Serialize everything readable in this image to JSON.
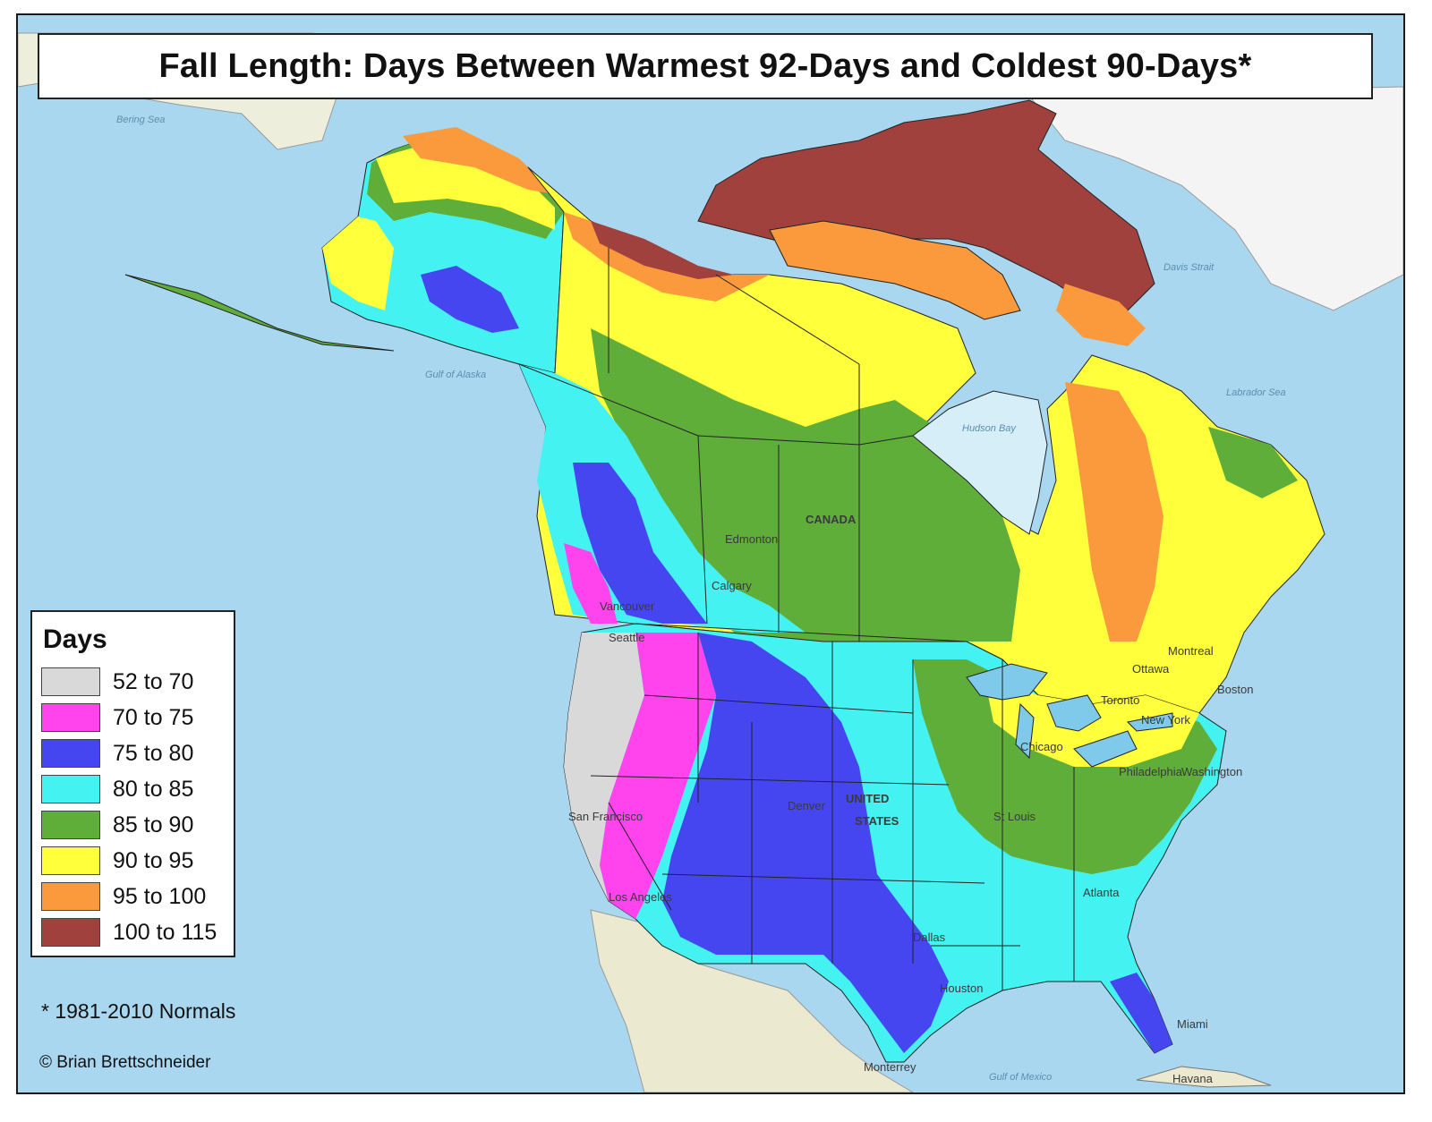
{
  "title": "Fall Length: Days Between Warmest 92-Days and Coldest 90-Days*",
  "legend": {
    "title": "Days",
    "items": [
      {
        "label": "52 to 70",
        "color": "#d9d9d9"
      },
      {
        "label": "70 to 75",
        "color": "#ff44ee"
      },
      {
        "label": "75 to 80",
        "color": "#4646f0"
      },
      {
        "label": "80 to 85",
        "color": "#45f2f2"
      },
      {
        "label": "85 to 90",
        "color": "#5fae3a"
      },
      {
        "label": "90 to 95",
        "color": "#ffff3c"
      },
      {
        "label": "95 to 100",
        "color": "#fb9a3c"
      },
      {
        "label": "100 to 115",
        "color": "#a0413e"
      }
    ]
  },
  "footnote": "* 1981-2010 Normals",
  "credit": "© Brian Brettschneider",
  "map_labels": {
    "country_canada": "CANADA",
    "country_us_1": "UNITED",
    "country_us_2": "STATES",
    "cities": [
      "Edmonton",
      "Calgary",
      "Vancouver",
      "Seattle",
      "San Francisco",
      "Los Angeles",
      "Denver",
      "St Louis",
      "Chicago",
      "Dallas",
      "Houston",
      "Atlanta",
      "Miami",
      "Havana",
      "Monterrey",
      "Boston",
      "Philadelphia",
      "Washington",
      "Toronto",
      "Ottawa",
      "Montreal",
      "New York"
    ],
    "seas": [
      "Bering Sea",
      "Gulf of Alaska",
      "Hudson Bay",
      "Labrador Sea",
      "Davis Strait",
      "Gulf of Mexico"
    ]
  }
}
